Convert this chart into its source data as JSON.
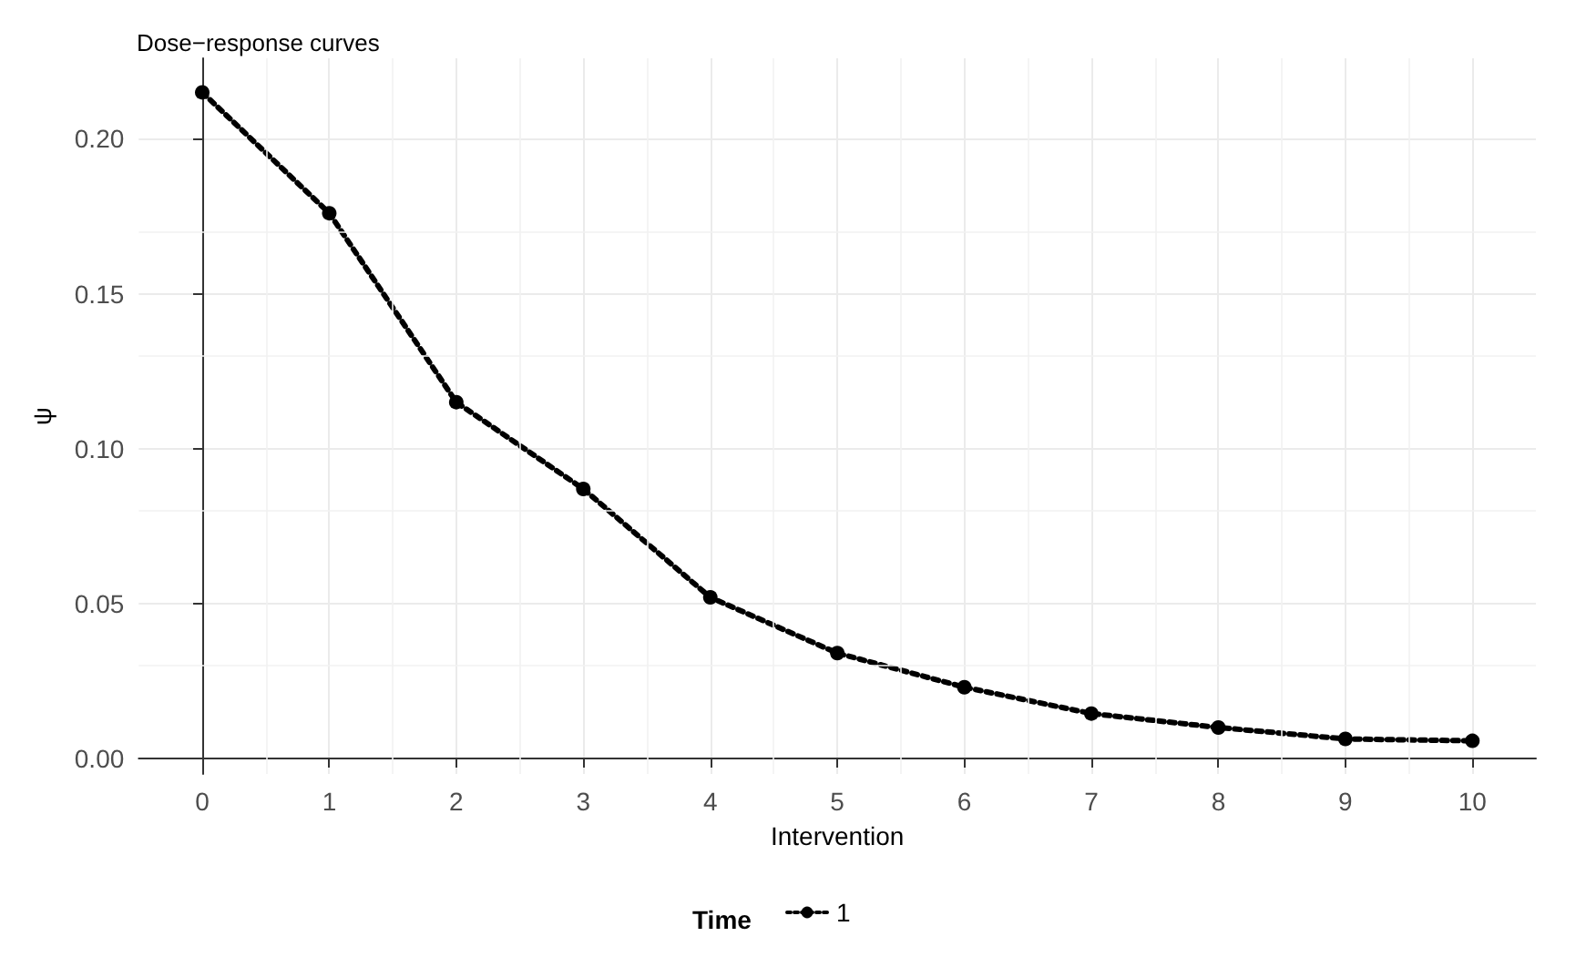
{
  "chart_data": {
    "type": "line",
    "title": "Dose−response curves",
    "xlabel": "Intervention",
    "ylabel": "ψ",
    "legend_title": "Time",
    "x": [
      0,
      1,
      2,
      3,
      4,
      5,
      6,
      7,
      8,
      9,
      10
    ],
    "series": [
      {
        "name": "1",
        "color": "#000000",
        "values": [
          0.215,
          0.176,
          0.115,
          0.087,
          0.052,
          0.034,
          0.023,
          0.0145,
          0.01,
          0.0063,
          0.0057
        ]
      }
    ],
    "xlim": [
      -0.5,
      10.5
    ],
    "xticks": [
      0,
      1,
      2,
      3,
      4,
      5,
      6,
      7,
      8,
      9,
      10
    ],
    "ylim": [
      -0.005,
      0.226
    ],
    "yticks": [
      {
        "value": 0,
        "label": "0.00"
      },
      {
        "value": 0.05,
        "label": "0.05"
      },
      {
        "value": 0.1,
        "label": "0.10"
      },
      {
        "value": 0.15,
        "label": "0.15"
      },
      {
        "value": 0.2,
        "label": "0.20"
      }
    ],
    "grid": true,
    "legend": "bottom",
    "marker": "circle",
    "line_style": "dotted"
  }
}
